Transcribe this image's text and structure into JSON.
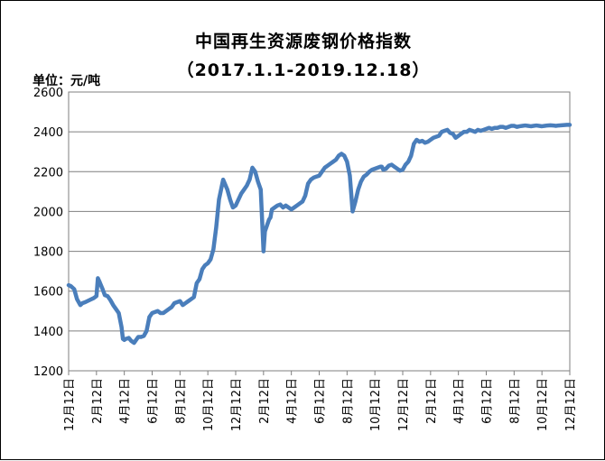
{
  "chart_data": {
    "type": "line",
    "title": "中国再生资源废钢价格指数",
    "subtitle": "（2017.1.1-2019.12.18）",
    "unit_label": "单位：元/吨",
    "ylim": [
      1200,
      2600
    ],
    "yticks": [
      "1200",
      "1400",
      "1600",
      "1800",
      "2000",
      "2200",
      "2400",
      "2600"
    ],
    "xtick_labels": [
      "12月12日",
      "2月12日",
      "4月12日",
      "6月12日",
      "8月12日",
      "10月12日",
      "12月12日",
      "2月12日",
      "4月12日",
      "6月12日",
      "8月12日",
      "10月12日",
      "12月12日",
      "2月12日",
      "4月12日",
      "6月12日",
      "8月12日",
      "10月12日",
      "12月12日"
    ],
    "grid": true,
    "line_color": "#4a7ebb",
    "series": [
      {
        "x": [
          0,
          0.08,
          0.2,
          0.3,
          0.42,
          0.5,
          0.6,
          0.75,
          0.9,
          1.0,
          1.05,
          1.1,
          1.16,
          1.22,
          1.3,
          1.4,
          1.5,
          1.6,
          1.7,
          1.8,
          1.9,
          1.95,
          2.0,
          2.05,
          2.1,
          2.16,
          2.25,
          2.35,
          2.5,
          2.6,
          2.7,
          2.8,
          2.9,
          3.0,
          3.1,
          3.2,
          3.3,
          3.4,
          3.5,
          3.6,
          3.7,
          3.8,
          3.9,
          4.0,
          4.1,
          4.2,
          4.3,
          4.4,
          4.5,
          4.6,
          4.7,
          4.8,
          4.9,
          5.0,
          5.1,
          5.2,
          5.3,
          5.4,
          5.55,
          5.7,
          5.8,
          5.9,
          6.0,
          6.1,
          6.2,
          6.3,
          6.4,
          6.5,
          6.6,
          6.7,
          6.8,
          6.9,
          7.0,
          7.05,
          7.1,
          7.15,
          7.2,
          7.25,
          7.3,
          7.4,
          7.5,
          7.6,
          7.7,
          7.8,
          7.9,
          8.0,
          8.1,
          8.2,
          8.3,
          8.4,
          8.5,
          8.6,
          8.7,
          8.8,
          8.9,
          9.0,
          9.1,
          9.2,
          9.3,
          9.4,
          9.5,
          9.6,
          9.7,
          9.8,
          9.9,
          10.0,
          10.1,
          10.2,
          10.3,
          10.4,
          10.5,
          10.6,
          10.7,
          10.8,
          10.9,
          11.0,
          11.1,
          11.2,
          11.25,
          11.3,
          11.4,
          11.5,
          11.6,
          11.7,
          11.8,
          11.9,
          12.0,
          12.1,
          12.2,
          12.3,
          12.4,
          12.5,
          12.6,
          12.7,
          12.8,
          12.9,
          13.0,
          13.1,
          13.2,
          13.3,
          13.4,
          13.5,
          13.6,
          13.7,
          13.8,
          13.9,
          14.0,
          14.1,
          14.2,
          14.3,
          14.4,
          14.5,
          14.6,
          14.7,
          14.8,
          14.9,
          15.0,
          15.1,
          15.2,
          15.3,
          15.4,
          15.5,
          15.6,
          15.7,
          15.8,
          15.9,
          16.0,
          16.1,
          16.2,
          16.3,
          16.4,
          16.5,
          16.6,
          16.7,
          16.8,
          16.9,
          17.0,
          17.1,
          17.2,
          17.3,
          17.4,
          17.5,
          17.6,
          17.7,
          17.8,
          17.9,
          18.0
        ],
        "values": [
          1630,
          1625,
          1610,
          1560,
          1530,
          1540,
          1545,
          1555,
          1565,
          1575,
          1665,
          1650,
          1630,
          1610,
          1580,
          1575,
          1555,
          1530,
          1510,
          1490,
          1420,
          1360,
          1355,
          1360,
          1362,
          1365,
          1350,
          1340,
          1370,
          1370,
          1375,
          1400,
          1470,
          1490,
          1495,
          1500,
          1490,
          1490,
          1500,
          1510,
          1520,
          1540,
          1545,
          1550,
          1530,
          1540,
          1550,
          1560,
          1570,
          1640,
          1660,
          1710,
          1730,
          1740,
          1760,
          1810,
          1920,
          2060,
          2160,
          2110,
          2060,
          2020,
          2030,
          2060,
          2090,
          2110,
          2130,
          2160,
          2220,
          2200,
          2150,
          2110,
          1800,
          1900,
          1920,
          1940,
          1960,
          1970,
          2010,
          2020,
          2030,
          2035,
          2020,
          2030,
          2020,
          2010,
          2020,
          2030,
          2040,
          2050,
          2080,
          2140,
          2160,
          2170,
          2175,
          2180,
          2200,
          2220,
          2230,
          2240,
          2250,
          2260,
          2280,
          2290,
          2280,
          2250,
          2180,
          2000,
          2050,
          2110,
          2150,
          2175,
          2185,
          2200,
          2210,
          2215,
          2220,
          2225,
          2225,
          2210,
          2215,
          2230,
          2235,
          2225,
          2215,
          2205,
          2210,
          2235,
          2250,
          2280,
          2340,
          2360,
          2350,
          2355,
          2345,
          2350,
          2360,
          2370,
          2375,
          2380,
          2400,
          2405,
          2410,
          2395,
          2390,
          2370,
          2380,
          2390,
          2400,
          2400,
          2410,
          2405,
          2400,
          2410,
          2405,
          2410,
          2415,
          2420,
          2415,
          2420,
          2420,
          2425,
          2425,
          2420,
          2425,
          2430,
          2430,
          2425,
          2428,
          2430,
          2432,
          2430,
          2428,
          2430,
          2432,
          2430,
          2428,
          2430,
          2432,
          2433,
          2432,
          2430,
          2432,
          2433,
          2434,
          2435,
          2435
        ]
      }
    ]
  }
}
